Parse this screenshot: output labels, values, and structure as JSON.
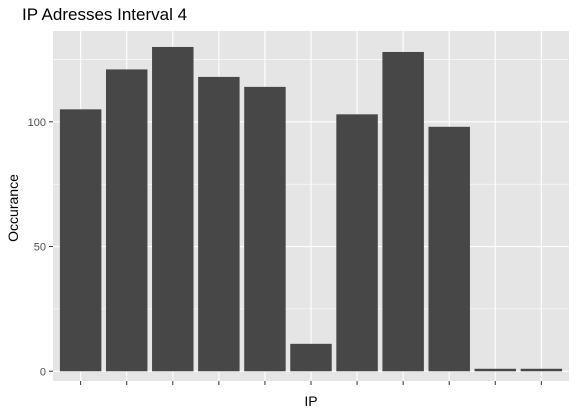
{
  "colors": {
    "panel_background": "#e5e5e5",
    "grid_major": "#ffffff",
    "bar_fill": "#474747",
    "tick": "#333333"
  },
  "chart_data": {
    "type": "bar",
    "title": "IP Adresses Interval 4",
    "xlabel": "IP",
    "ylabel": "Occurance",
    "categories": [
      "",
      "",
      "",
      "",
      "",
      "",
      "",
      "",
      "",
      "",
      ""
    ],
    "values": [
      105,
      121,
      130,
      118,
      114,
      11,
      103,
      128,
      98,
      1,
      1
    ],
    "ylim": [
      -3.9,
      136.4
    ],
    "yticks": [
      0,
      50,
      100
    ],
    "ytick_labels": [
      "0",
      "50",
      "100"
    ],
    "grid": true,
    "legend": "none"
  }
}
